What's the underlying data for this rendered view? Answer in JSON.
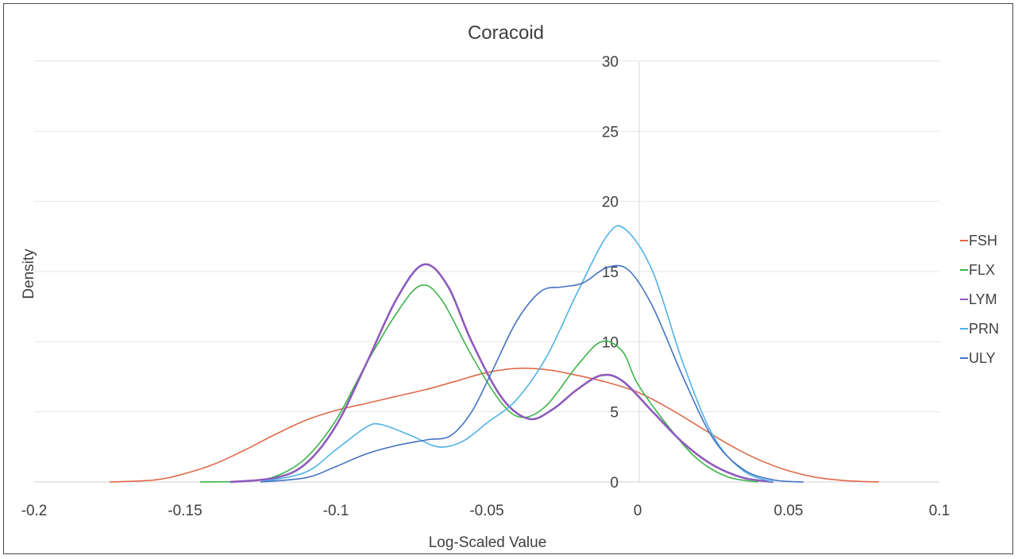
{
  "chart_data": {
    "type": "line",
    "title": "Coracoid",
    "xlabel": "Log-Scaled Value",
    "ylabel": "Density",
    "xlim": [
      -0.2,
      0.1
    ],
    "ylim": [
      0,
      30
    ],
    "x_ticks": [
      -0.2,
      -0.15,
      -0.1,
      -0.05,
      0,
      0.05,
      0.1
    ],
    "x_tick_labels": [
      "-0.2",
      "-0.15",
      "-0.1",
      "-0.05",
      "0",
      "0.05",
      "0.1"
    ],
    "y_ticks": [
      0,
      5,
      10,
      15,
      20,
      25,
      30
    ],
    "y_tick_labels": [
      "0",
      "5",
      "10",
      "15",
      "20",
      "25",
      "30"
    ],
    "grid": "horizontal",
    "legend_position": "right",
    "series": [
      {
        "name": "FSH",
        "color": "#e0694a",
        "points": [
          [
            -0.175,
            0
          ],
          [
            -0.16,
            0.15
          ],
          [
            -0.15,
            0.6
          ],
          [
            -0.14,
            1.3
          ],
          [
            -0.13,
            2.3
          ],
          [
            -0.12,
            3.4
          ],
          [
            -0.11,
            4.4
          ],
          [
            -0.1,
            5.1
          ],
          [
            -0.09,
            5.6
          ],
          [
            -0.08,
            6.1
          ],
          [
            -0.07,
            6.6
          ],
          [
            -0.06,
            7.2
          ],
          [
            -0.05,
            7.8
          ],
          [
            -0.04,
            8.1
          ],
          [
            -0.03,
            8.0
          ],
          [
            -0.02,
            7.6
          ],
          [
            -0.01,
            7.1
          ],
          [
            0,
            6.4
          ],
          [
            0.01,
            5.3
          ],
          [
            0.02,
            4.0
          ],
          [
            0.03,
            2.7
          ],
          [
            0.04,
            1.6
          ],
          [
            0.05,
            0.8
          ],
          [
            0.06,
            0.3
          ],
          [
            0.07,
            0.08
          ],
          [
            0.08,
            0
          ]
        ]
      },
      {
        "name": "FLX",
        "color": "#3cb44b",
        "points": [
          [
            -0.145,
            0
          ],
          [
            -0.13,
            0.05
          ],
          [
            -0.12,
            0.4
          ],
          [
            -0.11,
            1.7
          ],
          [
            -0.1,
            4.4
          ],
          [
            -0.09,
            8.4
          ],
          [
            -0.08,
            12.0
          ],
          [
            -0.072,
            14.0
          ],
          [
            -0.065,
            13.0
          ],
          [
            -0.055,
            9.0
          ],
          [
            -0.045,
            5.6
          ],
          [
            -0.038,
            4.6
          ],
          [
            -0.03,
            5.5
          ],
          [
            -0.02,
            8.3
          ],
          [
            -0.012,
            10.0
          ],
          [
            -0.005,
            9.3
          ],
          [
            0,
            7.0
          ],
          [
            0.01,
            4.0
          ],
          [
            0.02,
            1.6
          ],
          [
            0.03,
            0.35
          ],
          [
            0.04,
            0
          ]
        ]
      },
      {
        "name": "LYM",
        "color": "#8e5bbd",
        "points": [
          [
            -0.135,
            0
          ],
          [
            -0.12,
            0.3
          ],
          [
            -0.11,
            1.3
          ],
          [
            -0.1,
            4.0
          ],
          [
            -0.09,
            8.4
          ],
          [
            -0.08,
            13.0
          ],
          [
            -0.071,
            15.5
          ],
          [
            -0.063,
            14.0
          ],
          [
            -0.055,
            10.0
          ],
          [
            -0.045,
            6.0
          ],
          [
            -0.036,
            4.5
          ],
          [
            -0.028,
            5.2
          ],
          [
            -0.02,
            6.6
          ],
          [
            -0.012,
            7.6
          ],
          [
            -0.005,
            7.2
          ],
          [
            0.005,
            5.0
          ],
          [
            0.015,
            2.8
          ],
          [
            0.025,
            1.2
          ],
          [
            0.035,
            0.3
          ],
          [
            0.045,
            0
          ]
        ]
      },
      {
        "name": "PRN",
        "color": "#4fb3e8",
        "points": [
          [
            -0.125,
            0
          ],
          [
            -0.11,
            0.7
          ],
          [
            -0.1,
            2.3
          ],
          [
            -0.09,
            3.9
          ],
          [
            -0.085,
            4.1
          ],
          [
            -0.075,
            3.3
          ],
          [
            -0.066,
            2.5
          ],
          [
            -0.058,
            2.9
          ],
          [
            -0.05,
            4.2
          ],
          [
            -0.04,
            5.9
          ],
          [
            -0.03,
            9.0
          ],
          [
            -0.02,
            13.5
          ],
          [
            -0.01,
            17.6
          ],
          [
            -0.004,
            18.0
          ],
          [
            0.005,
            15.0
          ],
          [
            0.015,
            8.5
          ],
          [
            0.025,
            3.3
          ],
          [
            0.035,
            0.8
          ],
          [
            0.045,
            0
          ]
        ]
      },
      {
        "name": "ULY",
        "color": "#4472c4",
        "points": [
          [
            -0.125,
            0
          ],
          [
            -0.11,
            0.3
          ],
          [
            -0.1,
            1.1
          ],
          [
            -0.09,
            2.0
          ],
          [
            -0.08,
            2.6
          ],
          [
            -0.07,
            3.0
          ],
          [
            -0.062,
            3.3
          ],
          [
            -0.055,
            5.0
          ],
          [
            -0.048,
            8.0
          ],
          [
            -0.04,
            11.5
          ],
          [
            -0.032,
            13.6
          ],
          [
            -0.025,
            13.9
          ],
          [
            -0.018,
            14.2
          ],
          [
            -0.01,
            15.3
          ],
          [
            -0.003,
            15.1
          ],
          [
            0.005,
            12.5
          ],
          [
            0.015,
            7.5
          ],
          [
            0.025,
            3.1
          ],
          [
            0.035,
            0.9
          ],
          [
            0.045,
            0.15
          ],
          [
            0.055,
            0
          ]
        ]
      }
    ]
  }
}
